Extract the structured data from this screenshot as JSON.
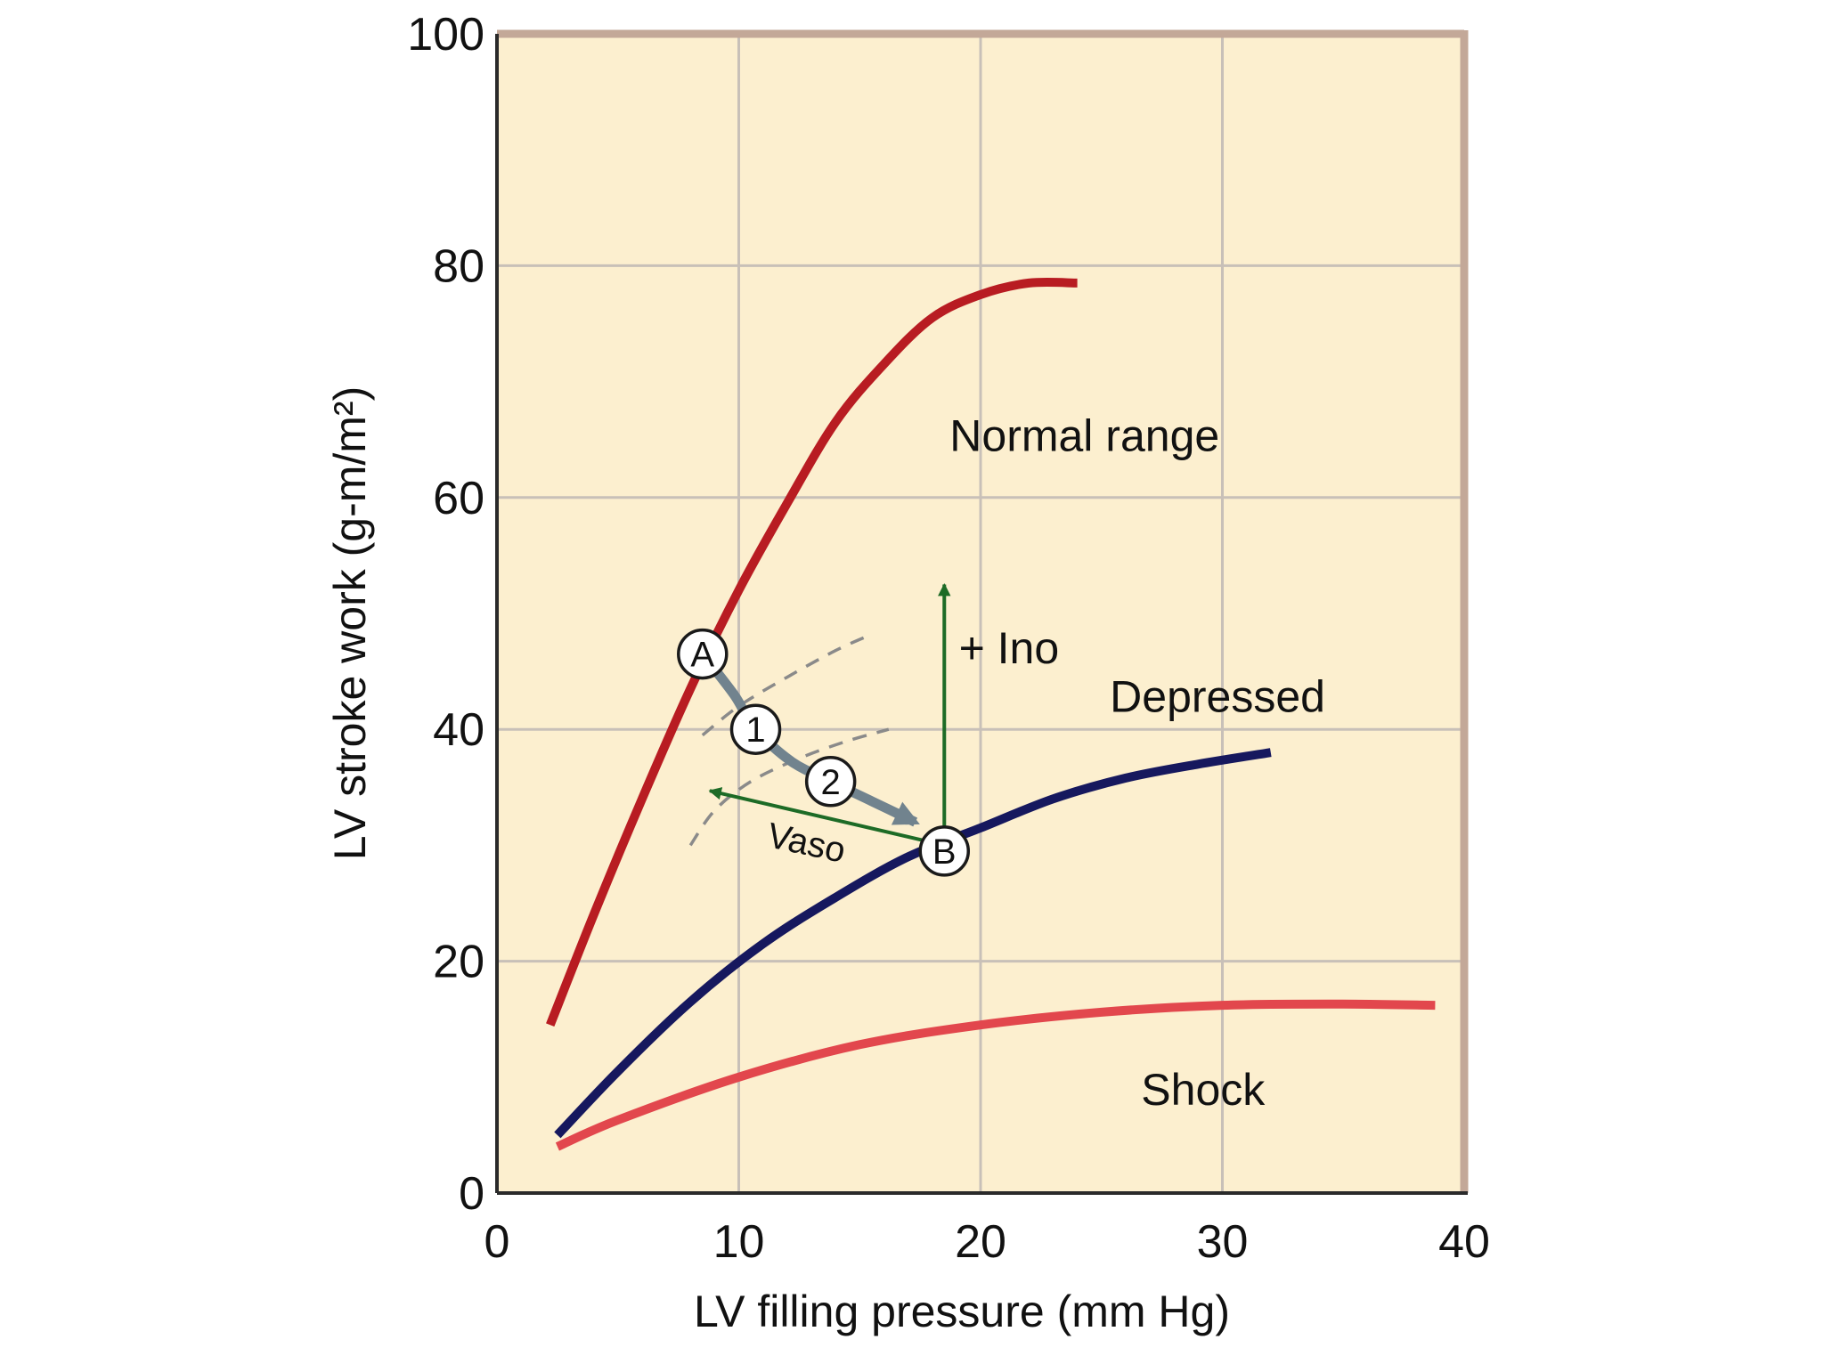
{
  "chart_data": {
    "type": "line",
    "title": "",
    "xlabel": "LV filling pressure (mm Hg)",
    "ylabel": "LV stroke work (g-m/m²)",
    "xlim": [
      0,
      40
    ],
    "ylim": [
      0,
      100
    ],
    "x_ticks": [
      0,
      10,
      20,
      30,
      40
    ],
    "y_ticks": [
      0,
      20,
      40,
      60,
      80,
      100
    ],
    "x_tick_labels": [
      "0",
      "10",
      "20",
      "30",
      "40"
    ],
    "y_tick_labels": [
      "0",
      "20",
      "40",
      "60",
      "80",
      "100"
    ],
    "grid": true,
    "colors": {
      "plot_background": "#fcefcf",
      "frame": "#c3a898",
      "grid": "#c8c0b8",
      "normal": "#b81c22",
      "depressed": "#16185e",
      "shock": "#e2474d",
      "path_arrow": "#71838e",
      "therapy_arrow": "#1d6b26",
      "dashed": "#8a8a8a"
    },
    "series": [
      {
        "name": "Normal range",
        "label": "Normal range",
        "color_key": "normal",
        "x": [
          2.2,
          4,
          6,
          8,
          10,
          12,
          14,
          16,
          18,
          20,
          22,
          24
        ],
        "y": [
          14.5,
          24,
          34,
          43.5,
          52,
          59.5,
          66.5,
          71.5,
          75.5,
          77.5,
          78.5,
          78.5
        ]
      },
      {
        "name": "Depressed",
        "label": "Depressed",
        "color_key": "depressed",
        "x": [
          2.5,
          5,
          8,
          11,
          14,
          17,
          20,
          23,
          26,
          29,
          32
        ],
        "y": [
          5,
          10.5,
          16.5,
          21.5,
          25.5,
          29,
          31.5,
          34,
          35.8,
          37,
          38
        ]
      },
      {
        "name": "Shock",
        "label": "Shock",
        "color_key": "shock",
        "x": [
          2.5,
          5,
          10,
          15,
          20,
          25,
          30,
          35,
          38.8
        ],
        "y": [
          4,
          6.3,
          10,
          12.8,
          14.5,
          15.6,
          16.2,
          16.3,
          16.2
        ]
      }
    ],
    "dashed_isolines": [
      {
        "name": "upper dashed curve",
        "x": [
          8.5,
          10,
          12,
          14,
          15.5
        ],
        "y": [
          39.5,
          42,
          44.5,
          46.8,
          48.2
        ]
      },
      {
        "name": "lower dashed curve",
        "x": [
          8,
          9,
          10.5,
          12.5,
          14.5,
          16.2
        ],
        "y": [
          30,
          33,
          35.5,
          37.5,
          39,
          40
        ]
      }
    ],
    "points": [
      {
        "id": "A",
        "label": "A",
        "x": 8.5,
        "y": 46.5
      },
      {
        "id": "B",
        "label": "B",
        "x": 18.5,
        "y": 29.5
      }
    ],
    "path_steps": [
      {
        "label": "1",
        "x": 10.7,
        "y": 40
      },
      {
        "label": "2",
        "x": 13.8,
        "y": 35.5
      }
    ],
    "path_curve": {
      "x": [
        8.5,
        9.8,
        10.7,
        12.2,
        13.8,
        15.5,
        17.3
      ],
      "y": [
        46.5,
        43,
        40,
        37.2,
        35.5,
        33.8,
        32
      ]
    },
    "therapy_arrows": [
      {
        "name": "Ino",
        "label": "+ Ino",
        "from": [
          18.5,
          30
        ],
        "to": [
          18.5,
          52.5
        ]
      },
      {
        "name": "Vaso",
        "label": "Vaso",
        "from": [
          18.5,
          30
        ],
        "to": [
          8.8,
          34.7
        ]
      }
    ]
  }
}
